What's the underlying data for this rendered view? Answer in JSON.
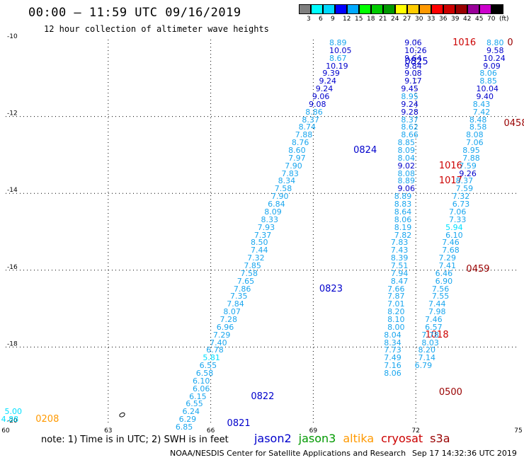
{
  "header": {
    "title": "00:00 – 11:59 UTC 09/16/2019",
    "subtitle": "12 hour collection of altimeter wave heights"
  },
  "colorbar": {
    "colors": [
      "#7f7f7f",
      "#00ffff",
      "#00d8ff",
      "#0000ff",
      "#00aaff",
      "#00ff00",
      "#00cc00",
      "#009900",
      "#ffff00",
      "#ffcc00",
      "#ff9900",
      "#ff0000",
      "#cc0000",
      "#990000",
      "#990099",
      "#cc00cc",
      "#000000"
    ],
    "labels": [
      "3",
      "6",
      "9",
      "12",
      "15",
      "18",
      "21",
      "24",
      "27",
      "30",
      "33",
      "36",
      "39",
      "42",
      "45",
      "70",
      "(ft)"
    ]
  },
  "axes": {
    "x_ticks": [
      "60",
      "63",
      "66",
      "69",
      "72",
      "75"
    ],
    "y_ticks": [
      "-10",
      "-12",
      "-14",
      "-16",
      "-18",
      "-20"
    ],
    "x_range": [
      60,
      75
    ],
    "y_range": [
      -20,
      -10
    ],
    "grid": true
  },
  "legend": {
    "note": "note: 1) Time is in UTC; 2) SWH is in feet",
    "satellites": [
      {
        "name": "jason2",
        "color": "#0000cc"
      },
      {
        "name": "jason3",
        "color": "#009900"
      },
      {
        "name": "altika",
        "color": "#ff9900"
      },
      {
        "name": "cryosat",
        "color": "#cc0000"
      },
      {
        "name": "s3a",
        "color": "#990000"
      }
    ]
  },
  "footer": {
    "credit": "NOAA/NESDIS Center for Satellite Applications and Research",
    "timestamp": "Sep 17 14:32:36 UTC 2019"
  },
  "chart_data": {
    "type": "scatter",
    "description_units": "wave height (ft) along altimeter ground tracks",
    "tracks": [
      {
        "satellite": "jason2",
        "color": "#0000cc",
        "times": [
          {
            "label": "0825",
            "lon": 71.8,
            "lat": -10.5
          },
          {
            "label": "0824",
            "lon": 70.3,
            "lat": -12.8
          },
          {
            "label": "0823",
            "lon": 69.3,
            "lat": -16.4
          },
          {
            "label": "0822",
            "lon": 67.3,
            "lat": -19.2
          },
          {
            "label": "0821",
            "lon": 66.6,
            "lat": -19.9
          }
        ],
        "points": [
          {
            "lon": 69.8,
            "lat": -10.0,
            "v": "8.89"
          },
          {
            "lon": 69.8,
            "lat": -10.2,
            "v": "10.05"
          },
          {
            "lon": 69.8,
            "lat": -10.4,
            "v": "8.67"
          },
          {
            "lon": 69.7,
            "lat": -10.6,
            "v": "10.19"
          },
          {
            "lon": 69.6,
            "lat": -10.8,
            "v": "9.39"
          },
          {
            "lon": 69.5,
            "lat": -11.0,
            "v": "9.24"
          },
          {
            "lon": 69.4,
            "lat": -11.2,
            "v": "9.24"
          },
          {
            "lon": 69.3,
            "lat": -11.4,
            "v": "9.06"
          },
          {
            "lon": 69.2,
            "lat": -11.6,
            "v": "9.08"
          },
          {
            "lon": 69.1,
            "lat": -11.8,
            "v": "8.86"
          },
          {
            "lon": 69.0,
            "lat": -12.0,
            "v": "8.37"
          },
          {
            "lon": 68.9,
            "lat": -12.2,
            "v": "8.74"
          },
          {
            "lon": 68.8,
            "lat": -12.4,
            "v": "7.88"
          },
          {
            "lon": 68.7,
            "lat": -12.6,
            "v": "8.76"
          },
          {
            "lon": 68.6,
            "lat": -12.8,
            "v": "8.60"
          },
          {
            "lon": 68.6,
            "lat": -13.0,
            "v": "7.97"
          },
          {
            "lon": 68.5,
            "lat": -13.2,
            "v": "7.90"
          },
          {
            "lon": 68.4,
            "lat": -13.4,
            "v": "7.83"
          },
          {
            "lon": 68.3,
            "lat": -13.6,
            "v": "8.34"
          },
          {
            "lon": 68.2,
            "lat": -13.8,
            "v": "7.58"
          },
          {
            "lon": 68.1,
            "lat": -14.0,
            "v": "7.90"
          },
          {
            "lon": 68.0,
            "lat": -14.2,
            "v": "6.84"
          },
          {
            "lon": 67.9,
            "lat": -14.4,
            "v": "8.09"
          },
          {
            "lon": 67.8,
            "lat": -14.6,
            "v": "8.33"
          },
          {
            "lon": 67.7,
            "lat": -14.8,
            "v": "7.93"
          },
          {
            "lon": 67.6,
            "lat": -15.0,
            "v": "7.37"
          },
          {
            "lon": 67.5,
            "lat": -15.2,
            "v": "8.50"
          },
          {
            "lon": 67.5,
            "lat": -15.4,
            "v": "7.44"
          },
          {
            "lon": 67.4,
            "lat": -15.6,
            "v": "7.32"
          },
          {
            "lon": 67.3,
            "lat": -15.8,
            "v": "7.85"
          },
          {
            "lon": 67.2,
            "lat": -16.0,
            "v": "7.58"
          },
          {
            "lon": 67.1,
            "lat": -16.2,
            "v": "7.65"
          },
          {
            "lon": 67.0,
            "lat": -16.4,
            "v": "7.86"
          },
          {
            "lon": 66.9,
            "lat": -16.6,
            "v": "7.35"
          },
          {
            "lon": 66.8,
            "lat": -16.8,
            "v": "7.84"
          },
          {
            "lon": 66.7,
            "lat": -17.0,
            "v": "8.07"
          },
          {
            "lon": 66.6,
            "lat": -17.2,
            "v": "7.28"
          },
          {
            "lon": 66.5,
            "lat": -17.4,
            "v": "6.96"
          },
          {
            "lon": 66.4,
            "lat": -17.6,
            "v": "7.29"
          },
          {
            "lon": 66.3,
            "lat": -17.8,
            "v": "7.40"
          },
          {
            "lon": 66.2,
            "lat": -18.0,
            "v": "6.78"
          },
          {
            "lon": 66.1,
            "lat": -18.2,
            "v": "5.81"
          },
          {
            "lon": 66.0,
            "lat": -18.4,
            "v": "6.55"
          },
          {
            "lon": 65.9,
            "lat": -18.6,
            "v": "6.58"
          },
          {
            "lon": 65.8,
            "lat": -18.8,
            "v": "6.10"
          },
          {
            "lon": 65.8,
            "lat": -19.0,
            "v": "6.06"
          },
          {
            "lon": 65.7,
            "lat": -19.2,
            "v": "6.15"
          },
          {
            "lon": 65.6,
            "lat": -19.4,
            "v": "6.55"
          },
          {
            "lon": 65.5,
            "lat": -19.6,
            "v": "6.24"
          },
          {
            "lon": 65.4,
            "lat": -19.8,
            "v": "6.29"
          },
          {
            "lon": 65.3,
            "lat": -20.0,
            "v": "6.85"
          }
        ]
      },
      {
        "satellite": "cryosat",
        "color": "#cc0000",
        "times": [
          {
            "label": "1016",
            "lon": 73.2,
            "lat": -10.0
          },
          {
            "label": "1016",
            "lon": 72.8,
            "lat": -13.2
          },
          {
            "label": "1017",
            "lon": 72.8,
            "lat": -13.6
          },
          {
            "label": "1018",
            "lon": 72.4,
            "lat": -17.6
          }
        ],
        "points": [
          {
            "lon": 72.0,
            "lat": -10.0,
            "v": "9.06"
          },
          {
            "lon": 72.0,
            "lat": -10.2,
            "v": "10.26"
          },
          {
            "lon": 72.0,
            "lat": -10.4,
            "v": "9.64"
          },
          {
            "lon": 72.0,
            "lat": -10.6,
            "v": "9.84"
          },
          {
            "lon": 72.0,
            "lat": -10.8,
            "v": "9.08"
          },
          {
            "lon": 72.0,
            "lat": -11.0,
            "v": "9.17"
          },
          {
            "lon": 71.9,
            "lat": -11.2,
            "v": "9.45"
          },
          {
            "lon": 71.9,
            "lat": -11.4,
            "v": "8.95"
          },
          {
            "lon": 71.9,
            "lat": -11.6,
            "v": "9.24"
          },
          {
            "lon": 71.9,
            "lat": -11.8,
            "v": "9.28"
          },
          {
            "lon": 71.9,
            "lat": -12.0,
            "v": "8.37"
          },
          {
            "lon": 71.9,
            "lat": -12.2,
            "v": "8.62"
          },
          {
            "lon": 71.9,
            "lat": -12.4,
            "v": "8.66"
          },
          {
            "lon": 71.8,
            "lat": -12.6,
            "v": "8.85"
          },
          {
            "lon": 71.8,
            "lat": -12.8,
            "v": "8.09"
          },
          {
            "lon": 71.8,
            "lat": -13.0,
            "v": "8.04"
          },
          {
            "lon": 71.8,
            "lat": -13.2,
            "v": "9.02"
          },
          {
            "lon": 71.8,
            "lat": -13.4,
            "v": "8.08"
          },
          {
            "lon": 71.8,
            "lat": -13.6,
            "v": "8.89"
          },
          {
            "lon": 71.8,
            "lat": -13.8,
            "v": "9.06"
          },
          {
            "lon": 71.7,
            "lat": -14.0,
            "v": "8.89"
          },
          {
            "lon": 71.7,
            "lat": -14.2,
            "v": "8.83"
          },
          {
            "lon": 71.7,
            "lat": -14.4,
            "v": "8.64"
          },
          {
            "lon": 71.7,
            "lat": -14.6,
            "v": "8.06"
          },
          {
            "lon": 71.7,
            "lat": -14.8,
            "v": "8.19"
          },
          {
            "lon": 71.7,
            "lat": -15.0,
            "v": "7.82"
          },
          {
            "lon": 71.6,
            "lat": -15.2,
            "v": "7.83"
          },
          {
            "lon": 71.6,
            "lat": -15.4,
            "v": "7.43"
          },
          {
            "lon": 71.6,
            "lat": -15.6,
            "v": "8.39"
          },
          {
            "lon": 71.6,
            "lat": -15.8,
            "v": "7.51"
          },
          {
            "lon": 71.6,
            "lat": -16.0,
            "v": "7.94"
          },
          {
            "lon": 71.6,
            "lat": -16.2,
            "v": "8.47"
          },
          {
            "lon": 71.5,
            "lat": -16.4,
            "v": "7.66"
          },
          {
            "lon": 71.5,
            "lat": -16.6,
            "v": "7.87"
          },
          {
            "lon": 71.5,
            "lat": -16.8,
            "v": "7.01"
          },
          {
            "lon": 71.5,
            "lat": -17.0,
            "v": "8.20"
          },
          {
            "lon": 71.5,
            "lat": -17.2,
            "v": "8.10"
          },
          {
            "lon": 71.5,
            "lat": -17.4,
            "v": "8.00"
          },
          {
            "lon": 71.4,
            "lat": -17.6,
            "v": "8.04"
          },
          {
            "lon": 71.4,
            "lat": -17.8,
            "v": "8.34"
          },
          {
            "lon": 71.4,
            "lat": -18.0,
            "v": "7.73"
          },
          {
            "lon": 71.4,
            "lat": -18.2,
            "v": "7.49"
          },
          {
            "lon": 71.4,
            "lat": -18.4,
            "v": "7.16"
          },
          {
            "lon": 71.4,
            "lat": -18.6,
            "v": "8.06"
          }
        ]
      },
      {
        "satellite": "s3a",
        "color": "#990000",
        "times": [
          {
            "label": "0",
            "lon": 74.8,
            "lat": -10.0
          },
          {
            "label": "0458",
            "lon": 74.7,
            "lat": -12.1
          },
          {
            "label": "0459",
            "lon": 73.6,
            "lat": -15.9
          },
          {
            "label": "0500",
            "lon": 72.8,
            "lat": -19.1
          }
        ],
        "points": [
          {
            "lon": 74.4,
            "lat": -10.0,
            "v": "8.80"
          },
          {
            "lon": 74.4,
            "lat": -10.2,
            "v": "9.58"
          },
          {
            "lon": 74.3,
            "lat": -10.4,
            "v": "10.24"
          },
          {
            "lon": 74.3,
            "lat": -10.6,
            "v": "9.09"
          },
          {
            "lon": 74.2,
            "lat": -10.8,
            "v": "8.06"
          },
          {
            "lon": 74.2,
            "lat": -11.0,
            "v": "8.85"
          },
          {
            "lon": 74.1,
            "lat": -11.2,
            "v": "10.04"
          },
          {
            "lon": 74.1,
            "lat": -11.4,
            "v": "9.40"
          },
          {
            "lon": 74.0,
            "lat": -11.6,
            "v": "8.43"
          },
          {
            "lon": 74.0,
            "lat": -11.8,
            "v": "7.42"
          },
          {
            "lon": 73.9,
            "lat": -12.0,
            "v": "8.48"
          },
          {
            "lon": 73.9,
            "lat": -12.2,
            "v": "8.58"
          },
          {
            "lon": 73.8,
            "lat": -12.4,
            "v": "8.08"
          },
          {
            "lon": 73.8,
            "lat": -12.6,
            "v": "7.06"
          },
          {
            "lon": 73.7,
            "lat": -12.8,
            "v": "8.95"
          },
          {
            "lon": 73.7,
            "lat": -13.0,
            "v": "7.88"
          },
          {
            "lon": 73.6,
            "lat": -13.2,
            "v": "7.59"
          },
          {
            "lon": 73.6,
            "lat": -13.4,
            "v": "9.26"
          },
          {
            "lon": 73.5,
            "lat": -13.6,
            "v": "8.37"
          },
          {
            "lon": 73.5,
            "lat": -13.8,
            "v": "7.59"
          },
          {
            "lon": 73.4,
            "lat": -14.0,
            "v": "7.32"
          },
          {
            "lon": 73.4,
            "lat": -14.2,
            "v": "6.73"
          },
          {
            "lon": 73.3,
            "lat": -14.4,
            "v": "7.06"
          },
          {
            "lon": 73.3,
            "lat": -14.6,
            "v": "7.33"
          },
          {
            "lon": 73.2,
            "lat": -14.8,
            "v": "5.94"
          },
          {
            "lon": 73.2,
            "lat": -15.0,
            "v": "6.10"
          },
          {
            "lon": 73.1,
            "lat": -15.2,
            "v": "7.46"
          },
          {
            "lon": 73.1,
            "lat": -15.4,
            "v": "7.68"
          },
          {
            "lon": 73.0,
            "lat": -15.6,
            "v": "7.29"
          },
          {
            "lon": 73.0,
            "lat": -15.8,
            "v": "7.41"
          },
          {
            "lon": 72.9,
            "lat": -16.0,
            "v": "6.46"
          },
          {
            "lon": 72.9,
            "lat": -16.2,
            "v": "6.90"
          },
          {
            "lon": 72.8,
            "lat": -16.4,
            "v": "7.56"
          },
          {
            "lon": 72.8,
            "lat": -16.6,
            "v": "7.55"
          },
          {
            "lon": 72.7,
            "lat": -16.8,
            "v": "7.44"
          },
          {
            "lon": 72.7,
            "lat": -17.0,
            "v": "7.98"
          },
          {
            "lon": 72.6,
            "lat": -17.2,
            "v": "7.46"
          },
          {
            "lon": 72.6,
            "lat": -17.4,
            "v": "6.57"
          },
          {
            "lon": 72.5,
            "lat": -17.6,
            "v": "7.78"
          },
          {
            "lon": 72.5,
            "lat": -17.8,
            "v": "8.03"
          },
          {
            "lon": 72.4,
            "lat": -18.0,
            "v": "8.20"
          },
          {
            "lon": 72.4,
            "lat": -18.2,
            "v": "7.14"
          },
          {
            "lon": 72.3,
            "lat": -18.4,
            "v": "6.79"
          }
        ]
      },
      {
        "satellite": "altika",
        "color": "#ff9900",
        "times": [
          {
            "label": "0208",
            "lon": 61.0,
            "lat": -19.8
          }
        ],
        "points": [
          {
            "lon": 60.3,
            "lat": -19.6,
            "v": "5.00"
          },
          {
            "lon": 60.2,
            "lat": -19.8,
            "v": "4.88"
          }
        ]
      }
    ]
  }
}
